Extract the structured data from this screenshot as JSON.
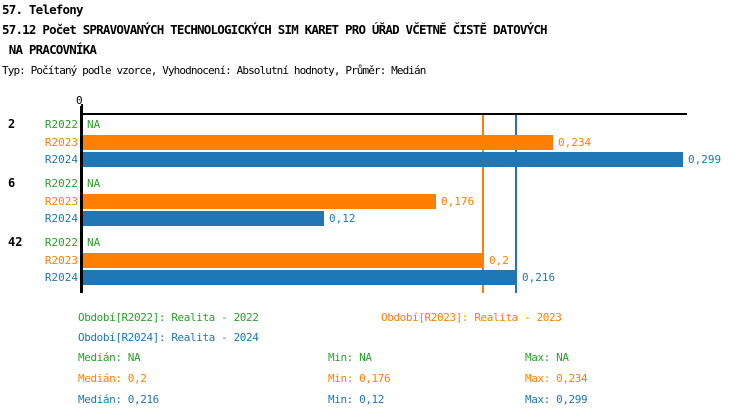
{
  "header": {
    "section_title": "57. Telefony",
    "title_line1": "57.12 Počet SPRAVOVANÝCH TECHNOLOGICKÝCH SIM KARET PRO ÚŘAD VČETNĚ ČISTĚ DATOVÝCH",
    "title_line2": " NA PRACOVNÍKA",
    "subtitle": "Typ: Počítaný podle vzorce, Vyhodnocení: Absolutní hodnoty, Průměr: Medián"
  },
  "colors": {
    "r2022": "#2CA02C",
    "r2023": "#FF8000",
    "r2024": "#2077B4",
    "axis": "#000000"
  },
  "chart_data": {
    "type": "bar",
    "orientation": "horizontal",
    "title": "57.12 Počet SPRAVOVANÝCH TECHNOLOGICKÝCH SIM KARET PRO ÚŘAD VČETNĚ ČISTĚ DATOVÝCH NA PRACOVNÍKA",
    "categories": [
      "2",
      "6",
      "42"
    ],
    "series": [
      {
        "name": "R2022",
        "color_key": "r2022",
        "values": [
          null,
          null,
          null
        ],
        "labels": [
          "NA",
          "NA",
          "NA"
        ]
      },
      {
        "name": "R2023",
        "color_key": "r2023",
        "values": [
          0.234,
          0.176,
          0.2
        ],
        "labels": [
          "0,234",
          "0,176",
          "0,2"
        ]
      },
      {
        "name": "R2024",
        "color_key": "r2024",
        "values": [
          0.299,
          0.12,
          0.216
        ],
        "labels": [
          "0,299",
          "0,12",
          "0,216"
        ]
      }
    ],
    "axis": {
      "origin_label": "0",
      "xlim": [
        0,
        0.3
      ],
      "gridlines": false,
      "legend_position": "bottom"
    },
    "reference_lines": [
      {
        "name": "median-line-r2023",
        "value": 0.2,
        "color_key": "r2023",
        "meaning": "Medián R2023"
      },
      {
        "name": "median-line-r2024",
        "value": 0.216,
        "color_key": "r2024",
        "meaning": "Medián R2024"
      }
    ]
  },
  "legend": {
    "items": [
      {
        "label": "Období[R2022]: Realita - 2022",
        "color_key": "r2022"
      },
      {
        "label": "Období[R2023]: Realita - 2023",
        "color_key": "r2023"
      },
      {
        "label": "Období[R2024]: Realita - 2024",
        "color_key": "r2024"
      }
    ]
  },
  "stats": {
    "rows": [
      {
        "color_key": "r2022",
        "median": "Medián: NA",
        "min": "Min: NA",
        "max": "Max: NA"
      },
      {
        "color_key": "r2023",
        "median": "Medián: 0,2",
        "min": "Min: 0,176",
        "max": "Max: 0,234"
      },
      {
        "color_key": "r2024",
        "median": "Medián: 0,216",
        "min": "Min: 0,12",
        "max": "Max: 0,299"
      }
    ]
  }
}
